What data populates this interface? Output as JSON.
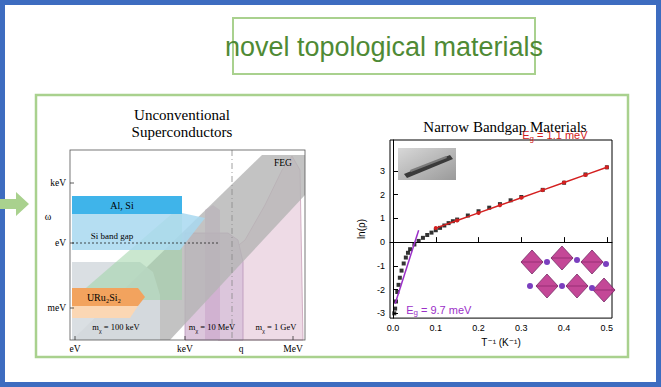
{
  "header": {
    "title": "novel topological materials"
  },
  "left_panel": {
    "title": [
      "Unconventional",
      "Superconductors"
    ],
    "x_label": "q",
    "y_label": "ω",
    "x_tick_labels": [
      "eV",
      "keV",
      "MeV"
    ],
    "y_tick_labels": [
      "keV",
      "eV",
      "meV"
    ],
    "annotations": [
      "Al, Si",
      "Si band gap",
      "URu₂Si₂",
      "mχ = 100 keV",
      "mχ = 10 MeV",
      "mχ = 1 GeV",
      "FEG"
    ]
  },
  "chart_data": {
    "type": "scatter",
    "title": "Narrow Bandgap Materials",
    "x_label": "T⁻¹ (K⁻¹)",
    "y_label": "ln(ρ)",
    "xlim": [
      -0.007,
      0.512
    ],
    "xticks": [
      {
        "value": 0,
        "label": "0.0"
      },
      0.1,
      0.2,
      0.3,
      0.4,
      0.5
    ],
    "ylim": [
      -3.2,
      4.3
    ],
    "yticks": [
      -3,
      -2,
      -1,
      0,
      1,
      2,
      3
    ],
    "grid": false,
    "series": [
      {
        "type": "scatter",
        "marker": "square",
        "color": "#000000",
        "x": [
          0.003,
          0.005,
          0.007,
          0.01,
          0.013,
          0.016,
          0.02,
          0.025,
          0.03,
          0.035,
          0.04,
          0.05,
          0.06,
          0.07,
          0.08,
          0.09,
          0.1,
          0.11,
          0.12,
          0.13,
          0.14,
          0.15,
          0.175,
          0.2,
          0.225,
          0.25,
          0.275,
          0.3,
          0.35,
          0.4,
          0.45,
          0.5
        ],
        "values": [
          -3.0,
          -2.8,
          -2.5,
          -2.1,
          -1.8,
          -1.5,
          -1.2,
          -0.9,
          -0.65,
          -0.45,
          -0.3,
          -0.1,
          0.05,
          0.18,
          0.3,
          0.4,
          0.5,
          0.6,
          0.7,
          0.8,
          0.88,
          0.95,
          1.12,
          1.3,
          1.45,
          1.6,
          1.76,
          1.9,
          2.2,
          2.5,
          2.85,
          3.15
        ]
      },
      {
        "type": "line",
        "marker": "circle",
        "line_style": "solid",
        "color": "#d42020",
        "x": [
          0.1,
          0.15,
          0.2,
          0.25,
          0.3,
          0.35,
          0.4,
          0.45,
          0.5
        ],
        "values": [
          0.59,
          0.91,
          1.23,
          1.55,
          1.87,
          2.19,
          2.51,
          2.83,
          3.15
        ],
        "annotation": "Eg = 1.1 meV"
      },
      {
        "type": "line",
        "line_style": "solid",
        "color": "#9b30c8",
        "x": [
          0.005,
          0.06
        ],
        "values": [
          -2.6,
          0.5
        ],
        "annotation": "Eg = 9.7 meV"
      }
    ]
  }
}
